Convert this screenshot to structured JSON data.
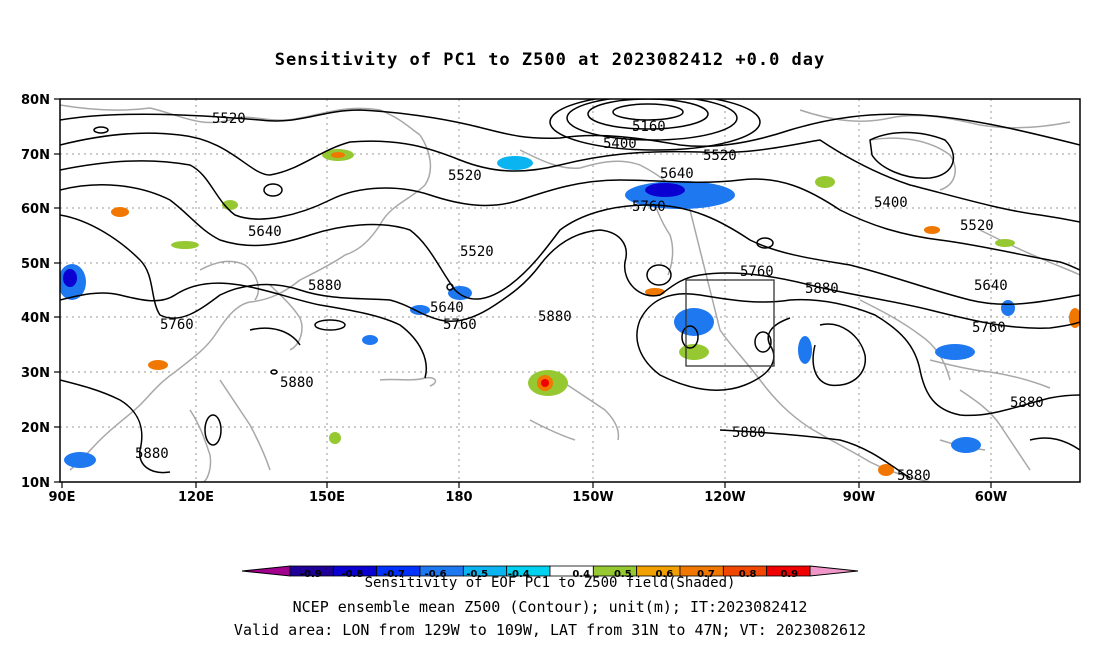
{
  "title": "Sensitivity of PC1 to Z500 at 2023082412 +0.0 day",
  "map": {
    "lat_labels": [
      "80N",
      "70N",
      "60N",
      "50N",
      "40N",
      "30N",
      "20N",
      "10N"
    ],
    "lon_labels": [
      "90E",
      "120E",
      "150E",
      "180",
      "150W",
      "120W",
      "90W",
      "60W"
    ],
    "contour_labels": [
      "5520",
      "5160",
      "5400",
      "5520",
      "5520",
      "5640",
      "5760",
      "5400",
      "5520",
      "5640",
      "5520",
      "5880",
      "5640",
      "5760",
      "5880",
      "5760",
      "5880",
      "5640",
      "5760",
      "5760",
      "5880",
      "5880",
      "5880",
      "5880",
      "5880"
    ],
    "valid_area_box": {
      "lon": [
        "129W",
        "109W"
      ],
      "lat": [
        "31N",
        "47N"
      ]
    }
  },
  "colorbar": {
    "ticks": [
      "-0.9",
      "-0.8",
      "-0.7",
      "-0.6",
      "-0.5",
      "-0.4",
      "0.4",
      "0.5",
      "0.6",
      "0.7",
      "0.8",
      "0.9"
    ],
    "colors": [
      "#a0008c",
      "#1e0096",
      "#0a00d2",
      "#0032ff",
      "#1e78f0",
      "#0ab4f0",
      "#00d2f0",
      "#ffffff",
      "#96c832",
      "#f0a000",
      "#f07800",
      "#f04600",
      "#f00000",
      "#f096c8"
    ]
  },
  "footer": {
    "line1": "Sensitivity of EOF PC1 to Z500 field(Shaded)",
    "line2": "NCEP ensemble mean Z500 (Contour); unit(m); IT:2023082412",
    "line3": "Valid area: LON from 129W to 109W, LAT from 31N to 47N; VT: 2023082612"
  }
}
